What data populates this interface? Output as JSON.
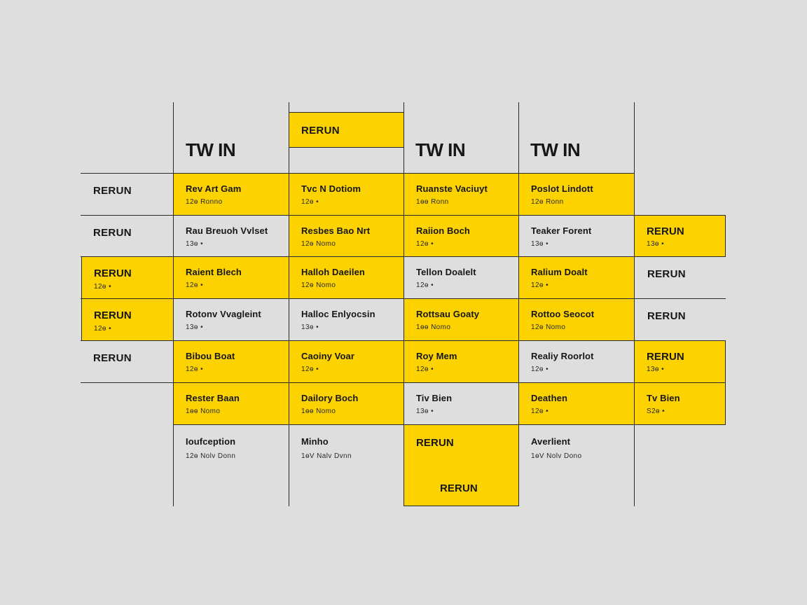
{
  "columns": {
    "header_1": "TW IN",
    "header_2_badge": "RERUN",
    "header_3": "TW IN",
    "header_4": "TW IN"
  },
  "row_labels": {
    "r1": "RERUN",
    "r2": "RERUN",
    "r3": "RERUN",
    "r3_sub": "12ɵ •",
    "r4": "RERUN",
    "r4_sub": "12ɵ •",
    "r5": "RERUN"
  },
  "right_column": {
    "r2": {
      "title": "RERUN",
      "sub": "13ɵ •"
    },
    "r3": {
      "title": "RERUN"
    },
    "r4": {
      "title": "RERUN"
    },
    "r5": {
      "title": "RERUN",
      "sub": "13ɵ •"
    },
    "r6": {
      "title": "Tv Bien",
      "sub": "S2ɵ •"
    }
  },
  "cells": {
    "r1c1": {
      "title": "Rev Art Gam",
      "sub": "12ɵ  Ronno"
    },
    "r1c2": {
      "title": "Tvc N Dotiom",
      "sub": "12ɵ  •"
    },
    "r1c3": {
      "title": "Ruanste Vaciuyt",
      "sub": "1ɵɵ  Ronn"
    },
    "r1c4": {
      "title": "Poslot Lindott",
      "sub": "12ɵ  Ronn"
    },
    "r2c1": {
      "title": "Rau Breuoh Vvlset",
      "sub": "13ɵ •"
    },
    "r2c2": {
      "title": "Resbes Bao Nrt",
      "sub": "12ɵ  Nomo"
    },
    "r2c3": {
      "title": "Raiion Boch",
      "sub": "12ɵ •"
    },
    "r2c4": {
      "title": "Teaker Forent",
      "sub": "13ɵ •"
    },
    "r3c1": {
      "title": "Raient Blech",
      "sub": "12ɵ •"
    },
    "r3c2": {
      "title": "Halloh Daeilen",
      "sub": "12ɵ  Nomo"
    },
    "r3c3": {
      "title": "Tellon Doalelt",
      "sub": "12ɵ •"
    },
    "r3c4": {
      "title": "Ralium Doalt",
      "sub": "12ɵ •"
    },
    "r4c1": {
      "title": "Rotonv Vvagleint",
      "sub": "13ɵ •"
    },
    "r4c2": {
      "title": "Halloc Enlyocsin",
      "sub": "13ɵ •"
    },
    "r4c3": {
      "title": "Rottsau Goaty",
      "sub": "1ɵɵ  Nomo"
    },
    "r4c4": {
      "title": "Rottoo Seocot",
      "sub": "12ɵ  Nomo"
    },
    "r5c1": {
      "title": "Bibou Boat",
      "sub": "12ɵ •"
    },
    "r5c2": {
      "title": "Caoiny Voar",
      "sub": "12ɵ •"
    },
    "r5c3": {
      "title": "Roy Mem",
      "sub": "12ɵ •"
    },
    "r5c4": {
      "title": "Realiy Roorlot",
      "sub": "12ɵ •"
    },
    "r6c1": {
      "title": "Rester Baan",
      "sub": "1ɵɵ  Nomo"
    },
    "r6c2": {
      "title": "Dailory Boch",
      "sub": "1ɵɵ  Nomo"
    },
    "r6c3": {
      "title": "Tiv Bien",
      "sub": "13ɵ •"
    },
    "r6c4": {
      "title": "Deathen",
      "sub": "12ɵ •"
    },
    "r7c1": {
      "title": "Ioufception",
      "sub": "12ɵ  Nolv  Donn"
    },
    "r7c2": {
      "title": "Minho",
      "sub": "1ɵV  Nalv  Dvnn"
    },
    "r7c3": {
      "title": "RERUN",
      "sub": "RERUN"
    },
    "r7c4": {
      "title": "Averlient",
      "sub": "1ɵV  Nolv  Dono"
    }
  },
  "colors": {
    "background": "#dedede",
    "highlight": "#fcd200",
    "ink": "#161616"
  }
}
